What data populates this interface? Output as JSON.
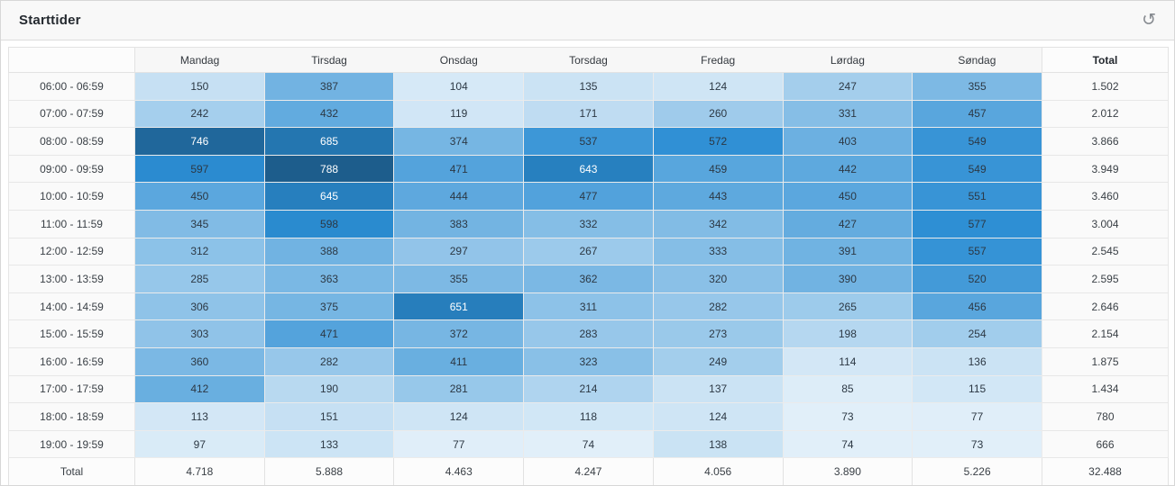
{
  "card": {
    "title": "Starttider",
    "icons": {
      "refresh": "↺"
    }
  },
  "chart_data": {
    "type": "heatmap",
    "title": "Starttider",
    "columns": [
      "Mandag",
      "Tirsdag",
      "Onsdag",
      "Torsdag",
      "Fredag",
      "Lørdag",
      "Søndag"
    ],
    "total_column_label": "Total",
    "total_row_label": "Total",
    "rows": [
      {
        "label": "06:00 - 06:59",
        "values": [
          150,
          387,
          104,
          135,
          124,
          247,
          355
        ],
        "total": "1.502"
      },
      {
        "label": "07:00 - 07:59",
        "values": [
          242,
          432,
          119,
          171,
          260,
          331,
          457
        ],
        "total": "2.012"
      },
      {
        "label": "08:00 - 08:59",
        "values": [
          746,
          685,
          374,
          537,
          572,
          403,
          549
        ],
        "total": "3.866"
      },
      {
        "label": "09:00 - 09:59",
        "values": [
          597,
          788,
          471,
          643,
          459,
          442,
          549
        ],
        "total": "3.949"
      },
      {
        "label": "10:00 - 10:59",
        "values": [
          450,
          645,
          444,
          477,
          443,
          450,
          551
        ],
        "total": "3.460"
      },
      {
        "label": "11:00 - 11:59",
        "values": [
          345,
          598,
          383,
          332,
          342,
          427,
          577
        ],
        "total": "3.004"
      },
      {
        "label": "12:00 - 12:59",
        "values": [
          312,
          388,
          297,
          267,
          333,
          391,
          557
        ],
        "total": "2.545"
      },
      {
        "label": "13:00 - 13:59",
        "values": [
          285,
          363,
          355,
          362,
          320,
          390,
          520
        ],
        "total": "2.595"
      },
      {
        "label": "14:00 - 14:59",
        "values": [
          306,
          375,
          651,
          311,
          282,
          265,
          456
        ],
        "total": "2.646"
      },
      {
        "label": "15:00 - 15:59",
        "values": [
          303,
          471,
          372,
          283,
          273,
          198,
          254
        ],
        "total": "2.154"
      },
      {
        "label": "16:00 - 16:59",
        "values": [
          360,
          282,
          411,
          323,
          249,
          114,
          136
        ],
        "total": "1.875"
      },
      {
        "label": "17:00 - 17:59",
        "values": [
          412,
          190,
          281,
          214,
          137,
          85,
          115
        ],
        "total": "1.434"
      },
      {
        "label": "18:00 - 18:59",
        "values": [
          113,
          151,
          124,
          118,
          124,
          73,
          77
        ],
        "total": "780"
      },
      {
        "label": "19:00 - 19:59",
        "values": [
          97,
          133,
          77,
          74,
          138,
          74,
          73
        ],
        "total": "666"
      }
    ],
    "column_totals": [
      "4.718",
      "5.888",
      "4.463",
      "4.247",
      "4.056",
      "3.890",
      "5.226"
    ],
    "grand_total": "32.488",
    "legend": "none",
    "color_scale": {
      "min_value": 73,
      "max_value": 788,
      "hue": 205,
      "saturation": 66,
      "lightness_light": 93,
      "lightness_dark": 33,
      "light_text_threshold": 47,
      "light_text_color": "#ffffff",
      "dark_text_color": "#2c3844",
      "sample_light_hex": "#daeaf6",
      "sample_mid_hex": "#57ace0",
      "sample_dark_hex": "#1b5e90"
    }
  }
}
